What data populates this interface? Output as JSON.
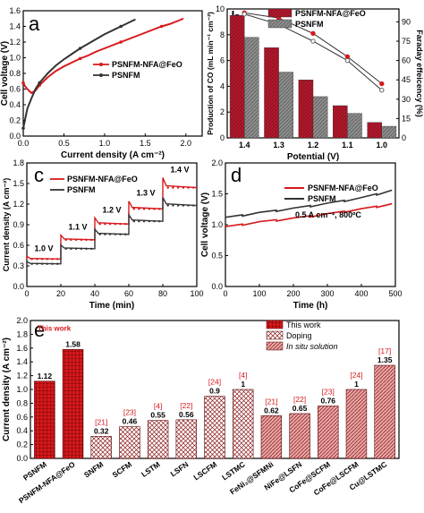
{
  "colors": {
    "red": "#d7191c",
    "black": "#333333",
    "darkred": "#b2182b",
    "grey": "#7f7f7f"
  },
  "chart_data": [
    {
      "panel": "a",
      "type": "line",
      "xlabel": "Current density (A cm⁻²)",
      "ylabel": "Cell voltage (V)",
      "xlim": [
        0,
        2.2
      ],
      "ylim": [
        0,
        1.6
      ],
      "xticks": [
        "0.0",
        "0.5",
        "1.0",
        "1.5",
        "2.0"
      ],
      "yticks": [
        "0.0",
        "0.2",
        "0.4",
        "0.6",
        "0.8",
        "1.0",
        "1.2",
        "1.4",
        "1.6"
      ],
      "series": [
        {
          "name": "PSNFM-NFA@FeO",
          "color": "red",
          "x": [
            0,
            0.02,
            0.05,
            0.1,
            0.15,
            0.2,
            0.3,
            0.4,
            0.5,
            0.6,
            0.7,
            0.8,
            0.9,
            1.0,
            1.1,
            1.2,
            1.3,
            1.4,
            1.5,
            1.6,
            1.7,
            1.8,
            1.9,
            1.97
          ],
          "y": [
            0.68,
            0.64,
            0.6,
            0.55,
            0.58,
            0.65,
            0.75,
            0.83,
            0.89,
            0.94,
            0.99,
            1.03,
            1.08,
            1.12,
            1.16,
            1.2,
            1.24,
            1.28,
            1.32,
            1.36,
            1.4,
            1.43,
            1.47,
            1.5
          ]
        },
        {
          "name": "PSNFM",
          "color": "black",
          "x": [
            0,
            0.02,
            0.05,
            0.1,
            0.15,
            0.2,
            0.3,
            0.4,
            0.5,
            0.6,
            0.7,
            0.8,
            0.9,
            1.0,
            1.1,
            1.2,
            1.3,
            1.38
          ],
          "y": [
            0.1,
            0.2,
            0.35,
            0.48,
            0.6,
            0.68,
            0.8,
            0.9,
            0.98,
            1.05,
            1.12,
            1.18,
            1.24,
            1.3,
            1.35,
            1.4,
            1.45,
            1.49
          ]
        }
      ]
    },
    {
      "panel": "b",
      "type": "bar",
      "xlabel": "Potential (V)",
      "ylabel": "Production of CO (mL min⁻¹ cm⁻²)",
      "y2label": "Faraday effeicency (%)",
      "categories": [
        "1.4",
        "1.3",
        "1.2",
        "1.1",
        "1.0"
      ],
      "ylim": [
        0,
        10
      ],
      "y2lim": [
        0,
        100
      ],
      "yticks": [
        "0",
        "2",
        "4",
        "6",
        "8",
        "10"
      ],
      "y2ticks": [
        "0",
        "15",
        "30",
        "45",
        "60",
        "75",
        "90"
      ],
      "series": [
        {
          "name": "PSNFM-NFA@FeO",
          "color": "darkred",
          "values": [
            9.5,
            7.0,
            4.5,
            2.5,
            1.2
          ],
          "faradaic": [
            97,
            93,
            81,
            63,
            42
          ]
        },
        {
          "name": "PSNFM",
          "color": "grey",
          "values": [
            7.8,
            5.1,
            3.2,
            1.9,
            0.9
          ],
          "faradaic": [
            96,
            88,
            75,
            60,
            37
          ]
        }
      ]
    },
    {
      "panel": "c",
      "type": "line",
      "xlabel": "Time (min)",
      "ylabel": "Current density (A cm⁻²)",
      "xlim": [
        0,
        100
      ],
      "ylim": [
        0,
        1.8
      ],
      "xticks": [
        "0",
        "20",
        "40",
        "60",
        "80",
        "100"
      ],
      "yticks": [
        "0.0",
        "0.3",
        "0.6",
        "0.9",
        "1.2",
        "1.5",
        "1.8"
      ],
      "step_labels": [
        "1.0 V",
        "1.1 V",
        "1.2 V",
        "1.3 V",
        "1.4 V"
      ],
      "series": [
        {
          "name": "PSNFM-NFA@FeO",
          "color": "red",
          "levels": [
            0.4,
            0.68,
            0.91,
            1.13,
            1.44
          ]
        },
        {
          "name": "PSNFM",
          "color": "black",
          "levels": [
            0.33,
            0.55,
            0.76,
            0.95,
            1.18
          ]
        }
      ]
    },
    {
      "panel": "d",
      "type": "line",
      "xlabel": "Time (h)",
      "ylabel": "Cell voltage (V)",
      "xlim": [
        0,
        500
      ],
      "ylim": [
        0,
        2.0
      ],
      "xticks": [
        "0",
        "100",
        "200",
        "300",
        "400",
        "500"
      ],
      "yticks": [
        "0.0",
        "0.5",
        "1.0",
        "1.5",
        "2.0"
      ],
      "annotation": "0.5 A cm⁻², 800ºC",
      "series": [
        {
          "name": "PSNFM-NFA@FeO",
          "color": "red",
          "x": [
            0,
            100,
            200,
            300,
            400,
            490
          ],
          "y": [
            0.97,
            1.05,
            1.11,
            1.18,
            1.26,
            1.34
          ]
        },
        {
          "name": "PSNFM",
          "color": "black",
          "x": [
            0,
            100,
            200,
            300,
            400,
            490
          ],
          "y": [
            1.12,
            1.2,
            1.27,
            1.35,
            1.44,
            1.56
          ]
        }
      ]
    },
    {
      "panel": "e",
      "type": "bar",
      "ylabel": "Current density (A cm⁻²)",
      "ylim": [
        0,
        2.0
      ],
      "yticks": [
        "0.0",
        "0.2",
        "0.4",
        "0.6",
        "0.8",
        "1.0",
        "1.2",
        "1.4",
        "1.6",
        "1.8",
        "2.0"
      ],
      "legend": [
        "This work",
        "Doping",
        "In situ solution"
      ],
      "highlight": "This work",
      "categories": [
        "PSNFM",
        "PSNFM-NFA@FeO",
        "SNFM",
        "SCFM",
        "LSTM",
        "LSFN",
        "LSCFM",
        "LSTMC",
        "FeNi₃@SFMNi",
        "NiFe@LSFN",
        "CoFe@SCFM",
        "CoFe@LSCFM",
        "Cu@LSTMC"
      ],
      "values": [
        1.12,
        1.58,
        0.32,
        0.46,
        0.55,
        0.56,
        0.9,
        1.0,
        0.62,
        0.65,
        0.76,
        1.0,
        1.35
      ],
      "group": [
        "this",
        "this",
        "doping",
        "doping",
        "doping",
        "doping",
        "doping",
        "doping",
        "insitu",
        "insitu",
        "insitu",
        "insitu",
        "insitu"
      ],
      "refs": [
        "",
        "",
        "[21]",
        "[23]",
        "[4]",
        "[22]",
        "[24]",
        "[4]",
        "[21]",
        "[22]",
        "[23]",
        "[24]",
        "[17]"
      ]
    }
  ]
}
